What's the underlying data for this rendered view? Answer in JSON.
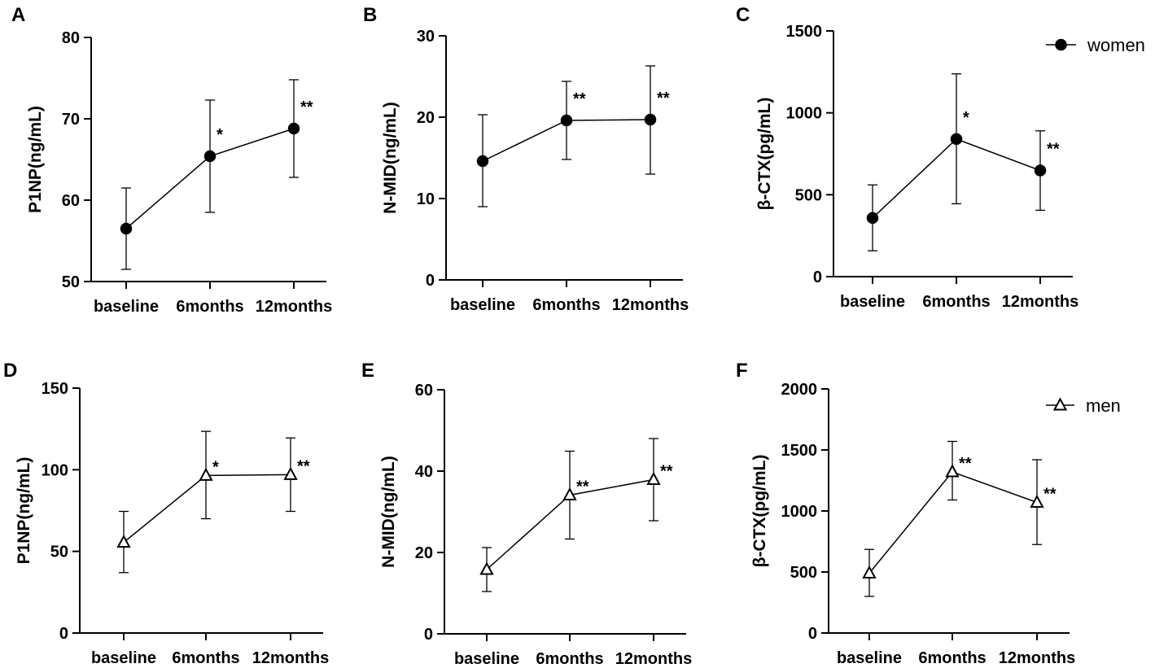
{
  "figure": {
    "series_styles": {
      "women": "filled-circle",
      "men": "open-triangle"
    },
    "line_color": "#000000",
    "background": "#ffffff"
  },
  "chart_data": [
    {
      "panel": "A",
      "type": "line",
      "series": "women",
      "ylabel": "P1NP(ng/mL)",
      "ylim": [
        50,
        80
      ],
      "yticks": [
        "50",
        "60",
        "70",
        "80"
      ],
      "categories": [
        "baseline",
        "6months",
        "12months"
      ],
      "values": [
        56.5,
        65.4,
        68.8
      ],
      "err_low": [
        51.5,
        58.5,
        62.8
      ],
      "err_high": [
        61.5,
        72.3,
        74.8
      ],
      "significance": [
        "",
        "*",
        "**"
      ]
    },
    {
      "panel": "B",
      "type": "line",
      "series": "women",
      "ylabel": "N-MID(ng/mL)",
      "ylim": [
        0,
        30
      ],
      "yticks": [
        "0",
        "10",
        "20",
        "30"
      ],
      "categories": [
        "baseline",
        "6months",
        "12months"
      ],
      "values": [
        14.6,
        19.6,
        19.7
      ],
      "err_low": [
        9.0,
        14.8,
        13.0
      ],
      "err_high": [
        20.3,
        24.4,
        26.3
      ],
      "significance": [
        "",
        "**",
        "**"
      ]
    },
    {
      "panel": "C",
      "type": "line",
      "series": "women",
      "ylabel": "β-CTX(pg/mL)",
      "ylim": [
        0,
        1500
      ],
      "yticks": [
        "0",
        "500",
        "1000",
        "1500"
      ],
      "categories": [
        "baseline",
        "6months",
        "12months"
      ],
      "values": [
        358,
        840,
        648
      ],
      "err_low": [
        158,
        445,
        405
      ],
      "err_high": [
        560,
        1238,
        890
      ],
      "significance": [
        "",
        "*",
        "**"
      ],
      "legend": {
        "label": "women",
        "position": "top-right"
      }
    },
    {
      "panel": "D",
      "type": "line",
      "series": "men",
      "ylabel": "P1NP(ng/mL)",
      "ylim": [
        0,
        150
      ],
      "yticks": [
        "0",
        "50",
        "100",
        "150"
      ],
      "categories": [
        "baseline",
        "6months",
        "12months"
      ],
      "values": [
        55.5,
        96.5,
        97.0
      ],
      "err_low": [
        37,
        70,
        74.5
      ],
      "err_high": [
        74.5,
        123.5,
        119.5
      ],
      "significance": [
        "",
        "*",
        "**"
      ]
    },
    {
      "panel": "E",
      "type": "line",
      "series": "men",
      "ylabel": "N-MID(ng/mL)",
      "ylim": [
        0,
        60
      ],
      "yticks": [
        "0",
        "20",
        "40",
        "60"
      ],
      "categories": [
        "baseline",
        "6months",
        "12months"
      ],
      "values": [
        15.8,
        34.1,
        37.9
      ],
      "err_low": [
        10.4,
        23.3,
        27.8
      ],
      "err_high": [
        21.2,
        44.9,
        48.0
      ],
      "significance": [
        "",
        "**",
        "**"
      ]
    },
    {
      "panel": "F",
      "type": "line",
      "series": "men",
      "ylabel": "β-CTX(pg/mL)",
      "ylim": [
        0,
        2000
      ],
      "yticks": [
        "0",
        "500",
        "1000",
        "1500",
        "2000"
      ],
      "categories": [
        "baseline",
        "6months",
        "12months"
      ],
      "values": [
        490,
        1320,
        1070
      ],
      "err_low": [
        300,
        1090,
        725
      ],
      "err_high": [
        685,
        1570,
        1420
      ],
      "significance": [
        "",
        "**",
        "**"
      ],
      "legend": {
        "label": "men",
        "position": "top-right"
      }
    }
  ]
}
